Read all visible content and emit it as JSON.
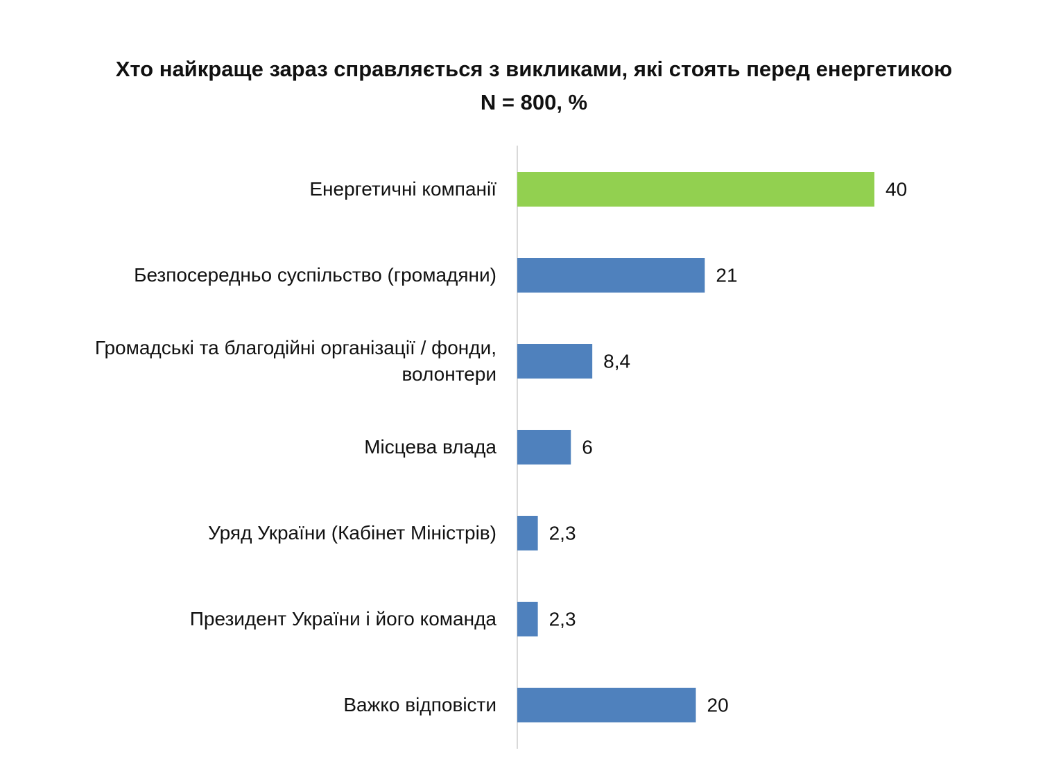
{
  "chart_data": {
    "type": "bar",
    "orientation": "horizontal",
    "title": "Хто найкраще зараз справляється з викликами, які стоять перед енергетикою N = 800, %",
    "categories": [
      "Енергетичні компанії",
      "Безпосередньо суспільство (громадяни)",
      "Громадські та благодійні організації / фонди, волонтери",
      "Місцева влада",
      "Уряд України (Кабінет Міністрів)",
      "Президент України і його команда",
      "Важко відповісти"
    ],
    "values": [
      40,
      21,
      8.4,
      6,
      2.3,
      2.3,
      20
    ],
    "value_labels": [
      "40",
      "21",
      "8,4",
      "6",
      "2,3",
      "2,3",
      "20"
    ],
    "colors": [
      "#92d050",
      "#4f81bd",
      "#4f81bd",
      "#4f81bd",
      "#4f81bd",
      "#4f81bd",
      "#4f81bd"
    ]
  }
}
